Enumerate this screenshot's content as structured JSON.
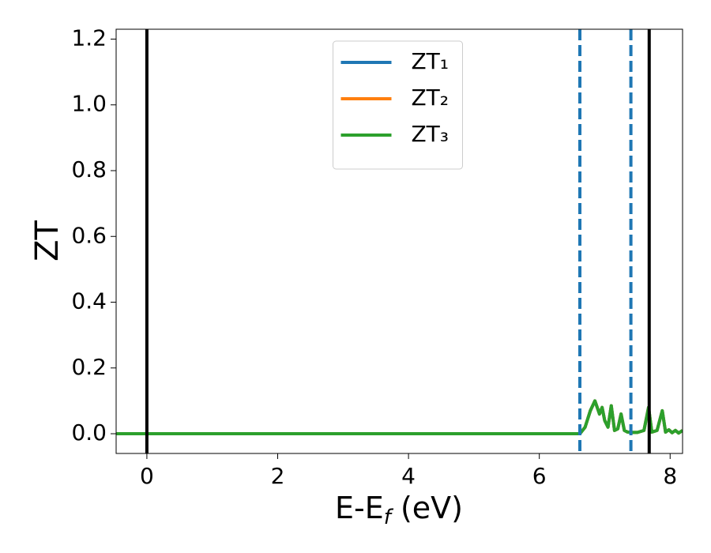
{
  "chart_data": {
    "type": "line",
    "xlabel": {
      "main": "E-E",
      "sub": "f",
      "after": " (eV)"
    },
    "ylabel": "ZT",
    "x": [
      -0.47,
      6.62,
      6.7,
      6.78,
      6.85,
      6.92,
      6.96,
      7.0,
      7.05,
      7.1,
      7.15,
      7.2,
      7.25,
      7.3,
      7.35,
      7.42,
      7.5,
      7.6,
      7.67,
      7.72,
      7.8,
      7.88,
      7.93,
      7.98,
      8.03,
      8.08,
      8.13,
      8.19
    ],
    "series": [
      {
        "name": "ZT₁",
        "color": "#1f77b4",
        "values": [
          0,
          0,
          0.02,
          0.07,
          0.1,
          0.06,
          0.08,
          0.04,
          0.02,
          0.085,
          0.01,
          0.015,
          0.06,
          0.01,
          0.005,
          0.004,
          0.004,
          0.01,
          0.08,
          0.005,
          0.01,
          0.07,
          0.005,
          0.012,
          0.003,
          0.01,
          0.002,
          0.01
        ]
      },
      {
        "name": "ZT₂",
        "color": "#ff7f0e",
        "values": [
          0,
          0,
          0.02,
          0.07,
          0.1,
          0.06,
          0.08,
          0.04,
          0.02,
          0.085,
          0.01,
          0.015,
          0.06,
          0.01,
          0.005,
          0.004,
          0.004,
          0.01,
          0.08,
          0.005,
          0.01,
          0.07,
          0.005,
          0.012,
          0.003,
          0.01,
          0.002,
          0.01
        ]
      },
      {
        "name": "ZT₃",
        "color": "#2ca02c",
        "values": [
          0,
          0,
          0.02,
          0.07,
          0.1,
          0.06,
          0.08,
          0.04,
          0.02,
          0.085,
          0.01,
          0.015,
          0.06,
          0.01,
          0.005,
          0.004,
          0.004,
          0.01,
          0.08,
          0.005,
          0.01,
          0.07,
          0.005,
          0.012,
          0.003,
          0.01,
          0.002,
          0.01
        ]
      }
    ],
    "vlines": [
      {
        "x": 0,
        "color": "#000000",
        "style": "solid"
      },
      {
        "x": 7.68,
        "color": "#000000",
        "style": "solid"
      },
      {
        "x": 6.62,
        "color": "#1f77b4",
        "style": "dashed"
      },
      {
        "x": 7.4,
        "color": "#1f77b4",
        "style": "dashed"
      }
    ],
    "xlim": [
      -0.47,
      8.19
    ],
    "ylim": [
      -0.06,
      1.23
    ],
    "xticks": [
      0,
      2,
      4,
      6,
      8
    ],
    "yticks": [
      {
        "value": 0,
        "label": "0.0"
      },
      0.2,
      0.4,
      0.6,
      0.8,
      {
        "value": 1,
        "label": "1.0"
      },
      1.2
    ],
    "legend": "upper center"
  }
}
